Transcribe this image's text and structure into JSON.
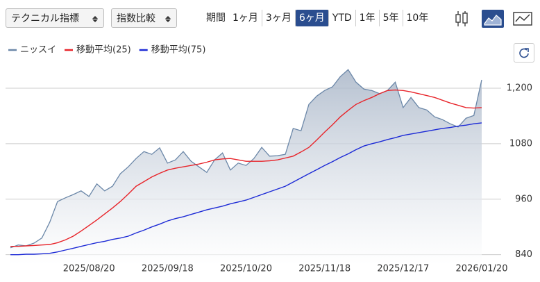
{
  "toolbar": {
    "selects": [
      "テクニカル指標",
      "指数比較"
    ],
    "period_label": "期間",
    "periods": [
      "1ヶ月",
      "3ヶ月",
      "6ヶ月",
      "YTD",
      "1年",
      "5年",
      "10年"
    ],
    "selected_period": 2
  },
  "chart_data": {
    "type": "line",
    "legend": "top-left",
    "grid": true,
    "categories": [
      null,
      null,
      null,
      null,
      null,
      null,
      null,
      null,
      null,
      null,
      "2025/08/20",
      null,
      null,
      null,
      null,
      null,
      null,
      null,
      null,
      null,
      "2025/09/18",
      null,
      null,
      null,
      null,
      null,
      null,
      null,
      null,
      null,
      "2025/10/20",
      null,
      null,
      null,
      null,
      null,
      null,
      null,
      null,
      null,
      "2025/11/18",
      null,
      null,
      null,
      null,
      null,
      null,
      null,
      null,
      null,
      "2025/12/17",
      null,
      null,
      null,
      null,
      null,
      null,
      null,
      null,
      null,
      "2026/01/20"
    ],
    "series": [
      {
        "name": "ニッスイ",
        "color": "#6b87a8",
        "fill": true,
        "values": [
          855,
          861,
          859,
          865,
          876,
          910,
          955,
          963,
          970,
          978,
          966,
          993,
          978,
          988,
          1015,
          1030,
          1048,
          1063,
          1057,
          1071,
          1038,
          1045,
          1063,
          1042,
          1030,
          1018,
          1045,
          1060,
          1023,
          1038,
          1033,
          1048,
          1072,
          1053,
          1054,
          1057,
          1113,
          1108,
          1165,
          1183,
          1195,
          1203,
          1225,
          1240,
          1213,
          1198,
          1195,
          1188,
          1195,
          1213,
          1158,
          1180,
          1158,
          1153,
          1138,
          1132,
          1123,
          1116,
          1135,
          1141,
          1218
        ]
      },
      {
        "name": "移動平均(25)",
        "color": "#e8242a",
        "values": [
          858,
          858,
          859,
          860,
          861,
          862,
          866,
          872,
          880,
          891,
          903,
          915,
          928,
          941,
          955,
          971,
          988,
          998,
          1008,
          1016,
          1023,
          1027,
          1030,
          1033,
          1036,
          1040,
          1045,
          1047,
          1048,
          1045,
          1042,
          1042,
          1042,
          1043,
          1045,
          1049,
          1053,
          1062,
          1072,
          1088,
          1105,
          1121,
          1138,
          1152,
          1165,
          1173,
          1180,
          1188,
          1195,
          1196,
          1195,
          1192,
          1188,
          1184,
          1180,
          1174,
          1168,
          1163,
          1158,
          1157,
          1158
        ]
      },
      {
        "name": "移動平均(75)",
        "color": "#1c2ad6",
        "values": [
          840,
          840,
          841,
          841,
          842,
          843,
          846,
          850,
          854,
          858,
          862,
          866,
          869,
          873,
          876,
          880,
          887,
          893,
          900,
          906,
          913,
          918,
          922,
          927,
          932,
          937,
          941,
          945,
          950,
          954,
          958,
          964,
          970,
          976,
          982,
          988,
          997,
          1006,
          1015,
          1024,
          1033,
          1041,
          1050,
          1058,
          1067,
          1075,
          1080,
          1084,
          1089,
          1093,
          1098,
          1101,
          1104,
          1107,
          1110,
          1113,
          1115,
          1118,
          1120,
          1123,
          1125
        ]
      }
    ],
    "ylim": [
      820,
      1260
    ],
    "yticks": [
      840,
      960,
      1080,
      {
        "value": 1200,
        "label": "1,200"
      }
    ]
  }
}
